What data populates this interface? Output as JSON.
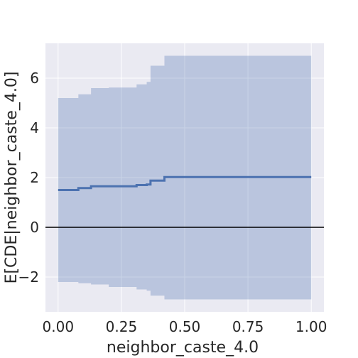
{
  "chart_data": {
    "type": "line",
    "title": "",
    "xlabel": "neighbor_caste_4.0",
    "ylabel": "E[CDE|neighbor_caste_4.0]",
    "xlim": [
      -0.05,
      1.05
    ],
    "ylim": [
      -3.4,
      7.4
    ],
    "xticks": [
      0.0,
      0.25,
      0.5,
      0.75,
      1.0
    ],
    "xtick_labels": [
      "0.00",
      "0.25",
      "0.50",
      "0.75",
      "1.00"
    ],
    "yticks": [
      -2,
      0,
      2,
      4,
      6
    ],
    "ytick_labels": [
      "−2",
      "0",
      "2",
      "4",
      "6"
    ],
    "grid": true,
    "reference_line_y": 0,
    "series": [
      {
        "style": "step-post",
        "x": [
          0.0,
          0.08,
          0.13,
          0.2,
          0.31,
          0.35,
          0.365,
          0.42,
          1.0
        ],
        "y": [
          1.5,
          1.58,
          1.65,
          1.65,
          1.7,
          1.72,
          1.88,
          2.02,
          2.02
        ]
      }
    ],
    "band": {
      "style": "step-post",
      "x": [
        0.0,
        0.08,
        0.13,
        0.2,
        0.31,
        0.35,
        0.365,
        0.42,
        1.0
      ],
      "upper": [
        5.2,
        5.35,
        5.6,
        5.62,
        5.75,
        5.85,
        6.5,
        6.9,
        6.9
      ],
      "lower": [
        -2.2,
        -2.25,
        -2.3,
        -2.4,
        -2.5,
        -2.55,
        -2.75,
        -2.9,
        -2.9
      ]
    },
    "colors": {
      "plot_background": "#eaeaf2",
      "grid": "#ffffff",
      "line": "#4c72b0",
      "band": "#4c72b0",
      "zero_line": "#000000"
    }
  }
}
